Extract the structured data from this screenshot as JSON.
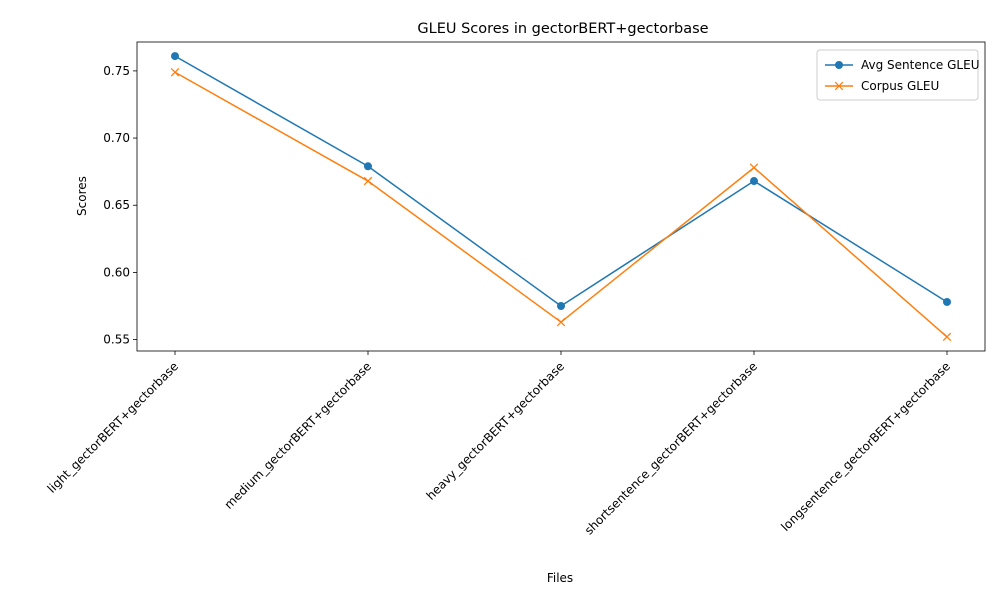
{
  "chart_data": {
    "type": "line",
    "title": "GLEU Scores in gectorBERT+gectorbase",
    "xlabel": "Files",
    "ylabel": "Scores",
    "categories": [
      "light_gectorBERT+gectorbase",
      "medium_gectorBERT+gectorbase",
      "heavy_gectorBERT+gectorbase",
      "shortsentence_gectorBERT+gectorbase",
      "longsentence_gectorBERT+gectorbase"
    ],
    "series": [
      {
        "name": "Avg Sentence GLEU",
        "values": [
          0.761,
          0.679,
          0.575,
          0.668,
          0.578
        ],
        "color": "#1f77b4",
        "marker": "circle"
      },
      {
        "name": "Corpus GLEU",
        "values": [
          0.749,
          0.668,
          0.563,
          0.678,
          0.552
        ],
        "color": "#ff7f0e",
        "marker": "x"
      }
    ],
    "ylim": [
      0.5415,
      0.7715
    ],
    "yticks": [
      "0.55",
      "0.60",
      "0.65",
      "0.70",
      "0.75"
    ],
    "grid": false,
    "legend_position": "top-right"
  }
}
